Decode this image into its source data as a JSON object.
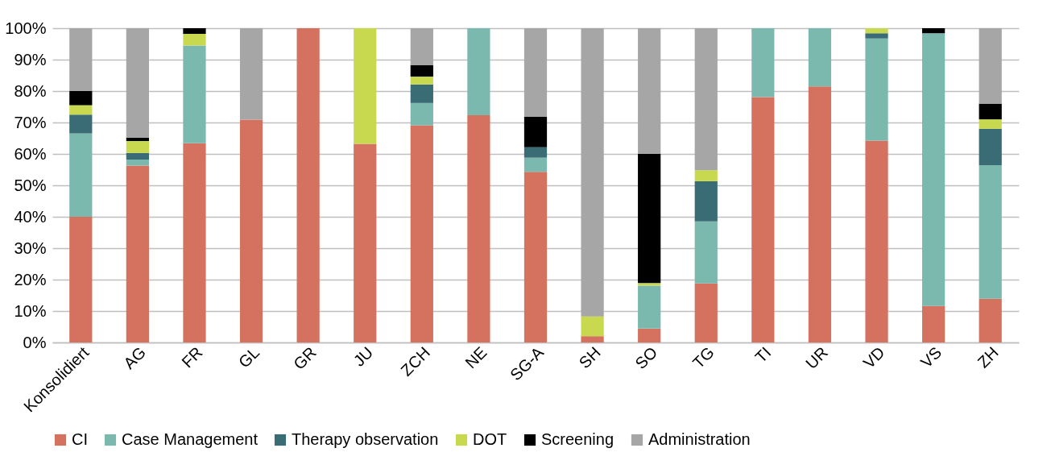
{
  "chart_data": {
    "type": "bar",
    "stacked": true,
    "categories": [
      "Konsolidiert",
      "AG",
      "FR",
      "GL",
      "GR",
      "JU",
      "ZCH",
      "NE",
      "SG-A",
      "SH",
      "SO",
      "TG",
      "TI",
      "UR",
      "VD",
      "VS",
      "ZH"
    ],
    "series": [
      {
        "name": "CI",
        "color": "#d4725f",
        "values": [
          40,
          56.3,
          63.4,
          70.9,
          100,
          63.2,
          69.1,
          72.3,
          54.3,
          2,
          4.4,
          18.8,
          78.1,
          81.5,
          64.2,
          11.6,
          13.9
        ]
      },
      {
        "name": "Case Management",
        "color": "#7bb9af",
        "values": [
          26.5,
          1.9,
          31.1,
          0,
          0,
          0,
          7.1,
          27.7,
          4.5,
          0,
          13.7,
          19.7,
          21.9,
          18.5,
          32.5,
          86.8,
          42.5
        ]
      },
      {
        "name": "Therapy observation",
        "color": "#3a6c75",
        "values": [
          6,
          2.1,
          0,
          0,
          0,
          0,
          5.9,
          0,
          3.3,
          0,
          null,
          12.8,
          0,
          0,
          1.7,
          0,
          11.6
        ]
      },
      {
        "name": "DOT",
        "color": "#c8d950",
        "values": [
          3,
          3.8,
          3.7,
          0,
          0,
          36.8,
          2.5,
          0,
          0,
          6.3,
          0.8,
          3.5,
          0,
          0,
          1.6,
          0,
          3
        ]
      },
      {
        "name": "Screening",
        "color": "#000000",
        "values": [
          4.5,
          1.1,
          1.8,
          0,
          0,
          0,
          3.7,
          0,
          9.7,
          0,
          41.1,
          0,
          0,
          0,
          0,
          1.6,
          5
        ]
      },
      {
        "name": "Administration",
        "color": "#a5a6a5",
        "values": [
          20,
          34.8,
          0,
          29.1,
          0,
          0,
          11.7,
          0,
          28.2,
          91.7,
          40,
          45.2,
          0,
          0,
          0,
          0,
          24
        ]
      }
    ],
    "ylim": [
      0,
      100
    ],
    "yticks": [
      {
        "value": 0,
        "label": "0%"
      },
      {
        "value": 10,
        "label": "10%"
      },
      {
        "value": 20,
        "label": "20%"
      },
      {
        "value": 30,
        "label": "30%"
      },
      {
        "value": 40,
        "label": "40%"
      },
      {
        "value": 50,
        "label": "50%"
      },
      {
        "value": 60,
        "label": "60%"
      },
      {
        "value": 70,
        "label": "70%"
      },
      {
        "value": 80,
        "label": "80%"
      },
      {
        "value": 90,
        "label": "90%"
      },
      {
        "value": 100,
        "label": "100%"
      }
    ],
    "grid": "y",
    "legend": "bottom"
  }
}
